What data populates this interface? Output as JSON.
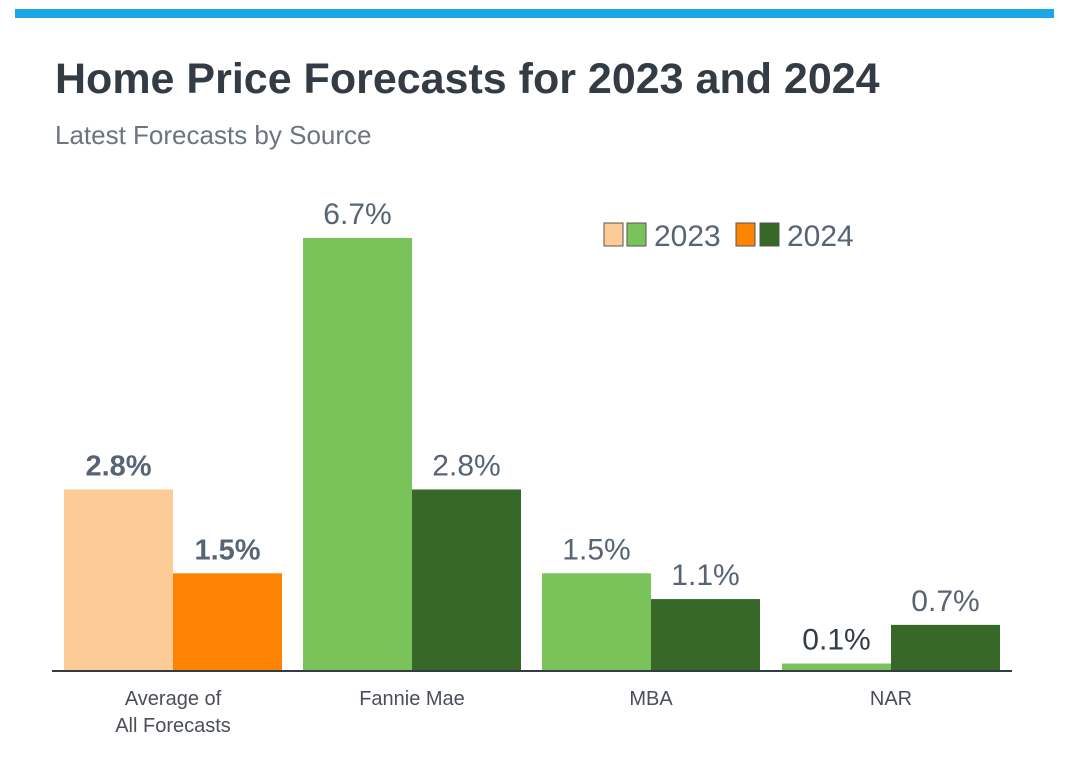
{
  "header": {
    "title": "Home Price Forecasts for 2023 and 2024",
    "subtitle": "Latest Forecasts by Source"
  },
  "colors": {
    "accent_bar": "#1ba7e6",
    "avg_2023": "#fccb98",
    "avg_2024": "#fd8403",
    "src_2023": "#79c35a",
    "src_2024": "#386828",
    "axis": "#333b45",
    "label_text": "#576475"
  },
  "chart_data": {
    "type": "bar",
    "title": "Home Price Forecasts for 2023 and 2024",
    "subtitle": "Latest Forecasts by Source",
    "categories": [
      [
        "Average of",
        "All Forecasts"
      ],
      [
        "Fannie Mae"
      ],
      [
        "MBA"
      ],
      [
        "NAR"
      ]
    ],
    "series": [
      {
        "name": "2023",
        "values": [
          2.8,
          6.7,
          1.5,
          0.1
        ]
      },
      {
        "name": "2024",
        "values": [
          1.5,
          2.8,
          1.1,
          0.7
        ]
      }
    ],
    "data_labels": [
      [
        "2.8%",
        "1.5%"
      ],
      [
        "6.7%",
        "2.8%"
      ],
      [
        "1.5%",
        "1.1%"
      ],
      [
        "0.1%",
        "0.7%"
      ]
    ],
    "unit": "%",
    "ylim": [
      0,
      6.7
    ],
    "grid": false,
    "legend": {
      "placement": "top-right",
      "entries": [
        "2023",
        "2024"
      ]
    }
  }
}
